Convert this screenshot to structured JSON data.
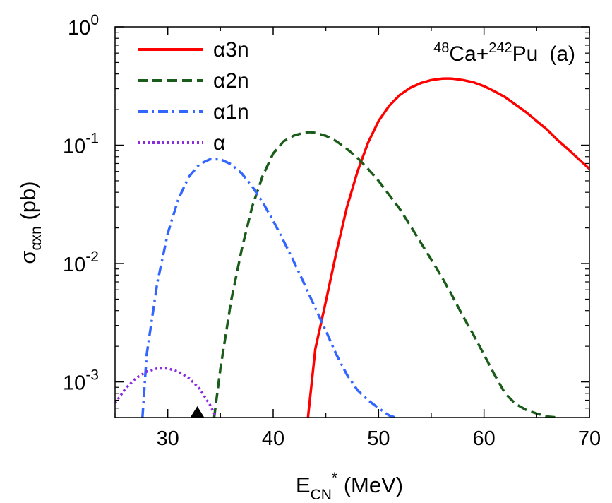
{
  "chart_data": {
    "type": "line",
    "annotation": {
      "projectile_mass": "48",
      "projectile": "Ca+",
      "target_mass": "242",
      "target": "Pu",
      "panel": "(a)"
    },
    "xlabel": {
      "main": "E",
      "sub": "CN",
      "sup": "*",
      "unit": " (MeV)"
    },
    "ylabel": {
      "main": "σ",
      "sub": "αxn",
      "unit": " (pb)"
    },
    "xlim": [
      25,
      70
    ],
    "ylim": [
      0.0005,
      1
    ],
    "yscale": "log",
    "x_ticks": [
      30,
      40,
      50,
      60,
      70
    ],
    "x_tick_labels": [
      "30",
      "40",
      "50",
      "60",
      "70"
    ],
    "y_ticks": [
      {
        "value": 1,
        "base": "10",
        "exp": "0"
      },
      {
        "value": 0.1,
        "base": "10",
        "exp": "-1"
      },
      {
        "value": 0.01,
        "base": "10",
        "exp": "-2"
      },
      {
        "value": 0.001,
        "base": "10",
        "exp": "-3"
      }
    ],
    "marker": {
      "x": 32.8,
      "shape": "triangle",
      "color": "#000000"
    },
    "legend_position": "top-left",
    "series": [
      {
        "name": "α3n",
        "color": "#ff0000",
        "dash": "solid",
        "x": [
          43.3,
          44,
          45,
          46,
          47,
          48,
          49,
          50,
          51,
          52,
          53,
          54,
          55,
          56,
          56.5,
          57,
          58,
          59,
          60,
          61,
          62,
          63,
          64,
          65,
          66,
          67,
          68,
          69,
          70
        ],
        "y": [
          0.0005,
          0.0019,
          0.0048,
          0.0125,
          0.03,
          0.06,
          0.105,
          0.16,
          0.215,
          0.265,
          0.305,
          0.335,
          0.355,
          0.365,
          0.366,
          0.365,
          0.355,
          0.34,
          0.315,
          0.285,
          0.255,
          0.22,
          0.19,
          0.16,
          0.135,
          0.11,
          0.092,
          0.076,
          0.063
        ]
      },
      {
        "name": "α2n",
        "color": "#1a5c1a",
        "dash": "dashed",
        "x": [
          34.4,
          35,
          36,
          37,
          38,
          39,
          40,
          41,
          42,
          43,
          43.5,
          44,
          45,
          46,
          47,
          48,
          49,
          50,
          51,
          52,
          53,
          54,
          55,
          56,
          57,
          58,
          59,
          60,
          61,
          62,
          63,
          64,
          65,
          66,
          67
        ],
        "y": [
          0.0005,
          0.0013,
          0.0048,
          0.013,
          0.03,
          0.055,
          0.085,
          0.108,
          0.121,
          0.128,
          0.129,
          0.127,
          0.12,
          0.108,
          0.093,
          0.078,
          0.063,
          0.05,
          0.038,
          0.029,
          0.021,
          0.015,
          0.0108,
          0.0077,
          0.0053,
          0.0036,
          0.0025,
          0.0017,
          0.00115,
          0.0008,
          0.00065,
          0.00058,
          0.00054,
          0.00051,
          0.0005
        ]
      },
      {
        "name": "α1n",
        "color": "#3366ff",
        "dash": "dashdot",
        "x": [
          27.6,
          28,
          29,
          30,
          31,
          32,
          33,
          34,
          35,
          36,
          37,
          38,
          39,
          40,
          41,
          42,
          43,
          44,
          45,
          46,
          47,
          48,
          49,
          50,
          51,
          51.6
        ],
        "y": [
          0.0005,
          0.0017,
          0.0068,
          0.018,
          0.035,
          0.054,
          0.069,
          0.076,
          0.076,
          0.069,
          0.058,
          0.045,
          0.033,
          0.023,
          0.0155,
          0.0102,
          0.0066,
          0.0042,
          0.0027,
          0.0017,
          0.00115,
          0.00085,
          0.0007,
          0.0006,
          0.00052,
          0.0005
        ]
      },
      {
        "name": "α",
        "color": "#8a2be2",
        "dash": "dotted",
        "x": [
          25,
          26,
          27,
          28,
          29,
          29.5,
          30,
          31,
          32,
          33,
          34,
          34.6
        ],
        "y": [
          0.00066,
          0.00088,
          0.00108,
          0.00122,
          0.0013,
          0.0013,
          0.0013,
          0.00122,
          0.00108,
          0.00088,
          0.00064,
          0.0005
        ]
      }
    ]
  }
}
